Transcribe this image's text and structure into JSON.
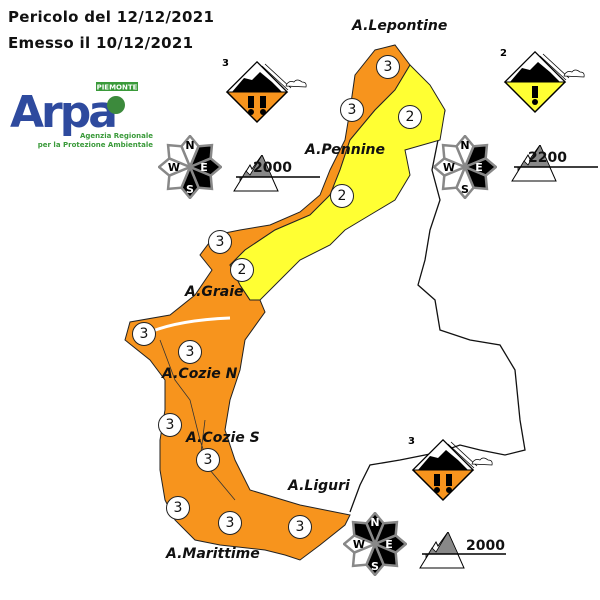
{
  "header": {
    "line1": "Pericolo del 12/12/2021",
    "line2": "Emesso il 10/12/2021"
  },
  "logo": {
    "name": "Arpa",
    "region": "PIEMONTE",
    "sub1": "Agenzia Regionale",
    "sub2": "per la Protezione Ambientale"
  },
  "colors": {
    "level3": "#f7941d",
    "level2": "#ffff33"
  },
  "areas": [
    {
      "name": "A.Lepontine"
    },
    {
      "name": "A.Pennine"
    },
    {
      "name": "A.Graie"
    },
    {
      "name": "A.Cozie N"
    },
    {
      "name": "A.Cozie S"
    },
    {
      "name": "A.Liguri"
    },
    {
      "name": "A.Marittime"
    }
  ],
  "zone_levels": [
    "3",
    "3",
    "2",
    "2",
    "2",
    "3",
    "2",
    "3",
    "3",
    "3",
    "3",
    "3",
    "3",
    "3"
  ],
  "forecasts": [
    {
      "level": "3",
      "icon": "danger-considerable",
      "elevation": "2000",
      "aspects_dark": [
        "NE",
        "E",
        "SE",
        "S"
      ]
    },
    {
      "level": "2",
      "icon": "danger-moderate",
      "elevation": "2200",
      "aspects_dark": [
        "NE",
        "E",
        "SE"
      ]
    },
    {
      "level": "3",
      "icon": "danger-considerable",
      "elevation": "2000",
      "aspects_dark": [
        "NW",
        "N",
        "NE",
        "E",
        "SE",
        "S"
      ]
    }
  ],
  "compass_labels": {
    "n": "N",
    "e": "E",
    "s": "S",
    "w": "W"
  }
}
